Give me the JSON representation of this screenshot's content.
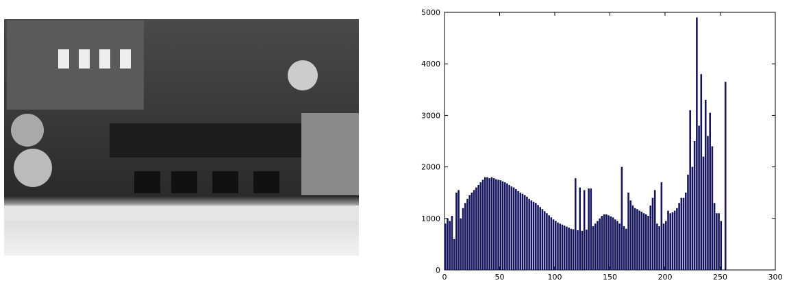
{
  "chart_data": {
    "type": "histogram",
    "color": "#15155e",
    "bins": [
      0,
      2,
      4,
      6,
      8,
      10,
      12,
      14,
      16,
      18,
      20,
      22,
      24,
      26,
      28,
      30,
      32,
      34,
      36,
      38,
      40,
      42,
      44,
      46,
      48,
      50,
      52,
      54,
      56,
      58,
      60,
      62,
      64,
      66,
      68,
      70,
      72,
      74,
      76,
      78,
      80,
      82,
      84,
      86,
      88,
      90,
      92,
      94,
      96,
      98,
      100,
      102,
      104,
      106,
      108,
      110,
      112,
      114,
      116,
      118,
      120,
      122,
      124,
      126,
      128,
      130,
      132,
      134,
      136,
      138,
      140,
      142,
      144,
      146,
      148,
      150,
      152,
      154,
      156,
      158,
      160,
      162,
      164,
      166,
      168,
      170,
      172,
      174,
      176,
      178,
      180,
      182,
      184,
      186,
      188,
      190,
      192,
      194,
      196,
      198,
      200,
      202,
      204,
      206,
      208,
      210,
      212,
      214,
      216,
      218,
      220,
      222,
      224,
      226,
      228,
      230,
      232,
      234,
      236,
      238,
      240,
      242,
      244,
      246,
      248,
      250,
      252,
      254,
      256
    ],
    "counts": [
      900,
      1000,
      950,
      1050,
      600,
      1500,
      1550,
      1000,
      1200,
      1300,
      1380,
      1450,
      1500,
      1550,
      1600,
      1650,
      1700,
      1750,
      1800,
      1800,
      1780,
      1800,
      1780,
      1760,
      1750,
      1740,
      1720,
      1700,
      1680,
      1650,
      1620,
      1600,
      1570,
      1530,
      1500,
      1480,
      1450,
      1420,
      1380,
      1350,
      1320,
      1300,
      1260,
      1220,
      1180,
      1140,
      1100,
      1060,
      1020,
      980,
      950,
      920,
      900,
      880,
      860,
      840,
      820,
      800,
      790,
      1780,
      770,
      1600,
      760,
      1550,
      780,
      1580,
      1580,
      850,
      900,
      950,
      1000,
      1050,
      1080,
      1080,
      1060,
      1040,
      1020,
      980,
      950,
      900,
      2000,
      850,
      800,
      1500,
      1350,
      1250,
      1200,
      1180,
      1150,
      1130,
      1100,
      1080,
      1050,
      1250,
      1400,
      1550,
      900,
      850,
      1700,
      900,
      950,
      1150,
      1100,
      1120,
      1150,
      1200,
      1300,
      1400,
      1400,
      1500,
      1850,
      3100,
      2000,
      2500,
      4900,
      2800,
      3800,
      2200,
      3300,
      2600,
      3050,
      2400,
      1300,
      1100,
      1100,
      950,
      0,
      3650
    ],
    "xlim": [
      0,
      300
    ],
    "ylim": [
      0,
      5000
    ],
    "xticks": [
      0,
      50,
      100,
      150,
      200,
      250,
      300
    ],
    "yticks": [
      0,
      1000,
      2000,
      3000,
      4000,
      5000
    ]
  }
}
